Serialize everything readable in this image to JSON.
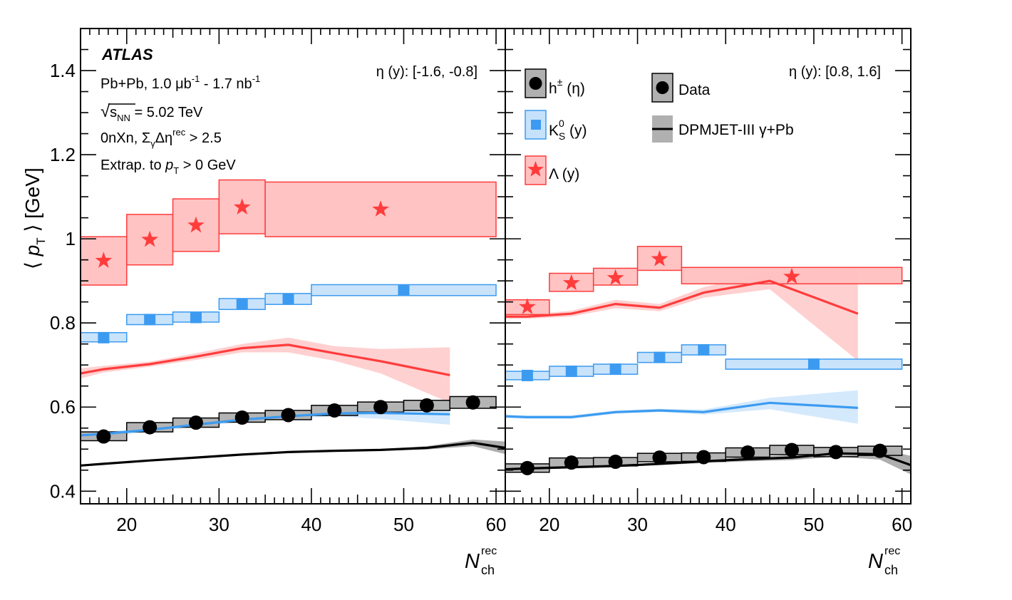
{
  "colors": {
    "lambda": "#ff3c3c",
    "lambda_fill": "#ffc0c0",
    "kaon": "#3c9bf0",
    "kaon_fill": "#c6e2fb",
    "hadron": "#000000",
    "hadron_fill": "#b0b0b0",
    "axis": "#000000"
  },
  "chart_data": {
    "type": "scatter",
    "title": "ATLAS",
    "ylabel": "⟨ p_T ⟩ [GeV]",
    "xlabel": "N_ch^rec",
    "ylim": [
      0.37,
      1.5
    ],
    "xlim": [
      15,
      61
    ],
    "yticks": [
      0.4,
      0.6,
      0.8,
      1.0,
      1.2,
      1.4
    ],
    "ytick_labels": [
      "0.4",
      "0.6",
      "0.8",
      "1",
      "1.2",
      "1.4"
    ],
    "xticks": [
      20,
      30,
      40,
      50,
      60
    ],
    "xtick_labels": [
      "20",
      "30",
      "40",
      "50",
      "60"
    ],
    "annotations": {
      "atlas": "ATLAS",
      "dataset": "Pb+Pb, 1.0 μb⁻¹ - 1.7 nb⁻¹",
      "energy": "√sNN = 5.02 TeV",
      "selection": "0nXn, ΣγΔη^rec > 2.5",
      "extrap": "Extrap. to pT > 0 GeV"
    },
    "legend": {
      "hadron": "h± (η)",
      "kaon": "K0S (y)",
      "lambda": "Λ (y)",
      "data": "Data",
      "model": "DPMJET-III γ+Pb"
    },
    "panels": [
      {
        "name": "backward",
        "range_label": "η (y): [-1.6, -0.8]",
        "lambda": {
          "points": [
            {
              "x": 17.5,
              "y": 0.948
            },
            {
              "x": 22.5,
              "y": 0.998
            },
            {
              "x": 27.5,
              "y": 1.032
            },
            {
              "x": 32.5,
              "y": 1.075
            },
            {
              "x": 47.5,
              "y": 1.07
            }
          ],
          "bins": [
            [
              15,
              20,
              0.89,
              1.005
            ],
            [
              20,
              25,
              0.938,
              1.058
            ],
            [
              25,
              30,
              0.97,
              1.095
            ],
            [
              30,
              35,
              1.012,
              1.14
            ],
            [
              35,
              60,
              1.005,
              1.135
            ]
          ],
          "model": [
            {
              "x": 15,
              "y": 0.68
            },
            {
              "x": 17.5,
              "y": 0.69
            },
            {
              "x": 22.5,
              "y": 0.702
            },
            {
              "x": 27.5,
              "y": 0.72
            },
            {
              "x": 32.5,
              "y": 0.74
            },
            {
              "x": 37.5,
              "y": 0.748
            },
            {
              "x": 42.5,
              "y": 0.728
            },
            {
              "x": 47.5,
              "y": 0.709
            },
            {
              "x": 55,
              "y": 0.676
            }
          ],
          "model_band": [
            [
              15,
              0.668,
              0.692
            ],
            [
              17.5,
              0.682,
              0.698
            ],
            [
              22.5,
              0.696,
              0.708
            ],
            [
              27.5,
              0.712,
              0.728
            ],
            [
              32.5,
              0.73,
              0.75
            ],
            [
              37.5,
              0.73,
              0.765
            ],
            [
              42.5,
              0.71,
              0.745
            ],
            [
              47.5,
              0.68,
              0.738
            ],
            [
              55,
              0.61,
              0.742
            ]
          ]
        },
        "kaon": {
          "points": [
            {
              "x": 17.5,
              "y": 0.765
            },
            {
              "x": 22.5,
              "y": 0.808
            },
            {
              "x": 27.5,
              "y": 0.813
            },
            {
              "x": 32.5,
              "y": 0.845
            },
            {
              "x": 37.5,
              "y": 0.857
            },
            {
              "x": 50,
              "y": 0.878
            }
          ],
          "bins": [
            [
              15,
              20,
              0.755,
              0.777
            ],
            [
              20,
              25,
              0.796,
              0.82
            ],
            [
              25,
              30,
              0.802,
              0.826
            ],
            [
              30,
              35,
              0.832,
              0.858
            ],
            [
              35,
              40,
              0.844,
              0.87
            ],
            [
              40,
              60,
              0.865,
              0.891
            ]
          ],
          "model": [
            {
              "x": 15,
              "y": 0.533
            },
            {
              "x": 17.5,
              "y": 0.536
            },
            {
              "x": 22.5,
              "y": 0.546
            },
            {
              "x": 27.5,
              "y": 0.558
            },
            {
              "x": 32.5,
              "y": 0.57
            },
            {
              "x": 37.5,
              "y": 0.578
            },
            {
              "x": 42.5,
              "y": 0.585
            },
            {
              "x": 47.5,
              "y": 0.586
            },
            {
              "x": 55,
              "y": 0.583
            }
          ],
          "model_band": [
            [
              15,
              0.527,
              0.539
            ],
            [
              17.5,
              0.531,
              0.541
            ],
            [
              22.5,
              0.541,
              0.551
            ],
            [
              27.5,
              0.553,
              0.563
            ],
            [
              32.5,
              0.565,
              0.575
            ],
            [
              37.5,
              0.572,
              0.584
            ],
            [
              42.5,
              0.578,
              0.592
            ],
            [
              47.5,
              0.572,
              0.6
            ],
            [
              55,
              0.558,
              0.608
            ]
          ]
        },
        "hadron": {
          "points": [
            {
              "x": 17.5,
              "y": 0.53
            },
            {
              "x": 22.5,
              "y": 0.552
            },
            {
              "x": 27.5,
              "y": 0.563
            },
            {
              "x": 32.5,
              "y": 0.575
            },
            {
              "x": 37.5,
              "y": 0.581
            },
            {
              "x": 42.5,
              "y": 0.592
            },
            {
              "x": 47.5,
              "y": 0.6
            },
            {
              "x": 52.5,
              "y": 0.604
            },
            {
              "x": 57.5,
              "y": 0.611
            }
          ],
          "bins": [
            [
              15,
              20,
              0.52,
              0.541
            ],
            [
              20,
              25,
              0.541,
              0.563
            ],
            [
              25,
              30,
              0.552,
              0.574
            ],
            [
              30,
              35,
              0.564,
              0.586
            ],
            [
              35,
              40,
              0.57,
              0.592
            ],
            [
              40,
              45,
              0.58,
              0.604
            ],
            [
              45,
              50,
              0.588,
              0.612
            ],
            [
              50,
              55,
              0.592,
              0.616
            ],
            [
              55,
              60,
              0.597,
              0.625
            ]
          ],
          "model": [
            {
              "x": 15,
              "y": 0.461
            },
            {
              "x": 17.5,
              "y": 0.465
            },
            {
              "x": 22.5,
              "y": 0.473
            },
            {
              "x": 27.5,
              "y": 0.48
            },
            {
              "x": 32.5,
              "y": 0.487
            },
            {
              "x": 37.5,
              "y": 0.493
            },
            {
              "x": 42.5,
              "y": 0.496
            },
            {
              "x": 47.5,
              "y": 0.498
            },
            {
              "x": 52.5,
              "y": 0.503
            },
            {
              "x": 57.5,
              "y": 0.515
            },
            {
              "x": 61,
              "y": 0.503
            }
          ],
          "model_band": [
            [
              15,
              0.459,
              0.463
            ],
            [
              17.5,
              0.463,
              0.467
            ],
            [
              22.5,
              0.471,
              0.475
            ],
            [
              27.5,
              0.478,
              0.482
            ],
            [
              32.5,
              0.485,
              0.489
            ],
            [
              37.5,
              0.491,
              0.495
            ],
            [
              42.5,
              0.494,
              0.498
            ],
            [
              47.5,
              0.496,
              0.5
            ],
            [
              52.5,
              0.499,
              0.507
            ],
            [
              57.5,
              0.507,
              0.523
            ],
            [
              61,
              0.488,
              0.518
            ]
          ]
        }
      },
      {
        "name": "forward",
        "range_label": "η (y): [0.8, 1.6]",
        "lambda": {
          "points": [
            {
              "x": 17.5,
              "y": 0.838
            },
            {
              "x": 22.5,
              "y": 0.895
            },
            {
              "x": 27.5,
              "y": 0.907
            },
            {
              "x": 32.5,
              "y": 0.952
            },
            {
              "x": 47.5,
              "y": 0.91
            }
          ],
          "bins": [
            [
              15,
              20,
              0.82,
              0.855
            ],
            [
              20,
              25,
              0.875,
              0.918
            ],
            [
              25,
              30,
              0.89,
              0.93
            ],
            [
              30,
              35,
              0.925,
              0.982
            ],
            [
              35,
              60,
              0.893,
              0.932
            ]
          ],
          "model": [
            {
              "x": 15,
              "y": 0.815
            },
            {
              "x": 17.5,
              "y": 0.815
            },
            {
              "x": 22.5,
              "y": 0.822
            },
            {
              "x": 27.5,
              "y": 0.845
            },
            {
              "x": 32.5,
              "y": 0.836
            },
            {
              "x": 37.5,
              "y": 0.872
            },
            {
              "x": 45,
              "y": 0.9
            },
            {
              "x": 55,
              "y": 0.822
            }
          ],
          "model_band": [
            [
              15,
              0.81,
              0.82
            ],
            [
              17.5,
              0.81,
              0.82
            ],
            [
              22.5,
              0.815,
              0.829
            ],
            [
              27.5,
              0.835,
              0.855
            ],
            [
              32.5,
              0.828,
              0.845
            ],
            [
              37.5,
              0.86,
              0.885
            ],
            [
              45,
              0.88,
              0.92
            ],
            [
              55,
              0.71,
              0.932
            ]
          ]
        },
        "kaon": {
          "points": [
            {
              "x": 17.5,
              "y": 0.675
            },
            {
              "x": 22.5,
              "y": 0.685
            },
            {
              "x": 27.5,
              "y": 0.69
            },
            {
              "x": 32.5,
              "y": 0.718
            },
            {
              "x": 37.5,
              "y": 0.736
            },
            {
              "x": 50,
              "y": 0.702
            }
          ],
          "bins": [
            [
              15,
              20,
              0.665,
              0.685
            ],
            [
              20,
              25,
              0.673,
              0.697
            ],
            [
              25,
              30,
              0.678,
              0.702
            ],
            [
              30,
              35,
              0.706,
              0.73
            ],
            [
              35,
              40,
              0.724,
              0.748
            ],
            [
              40,
              60,
              0.69,
              0.714
            ]
          ],
          "model": [
            {
              "x": 15,
              "y": 0.578
            },
            {
              "x": 17.5,
              "y": 0.576
            },
            {
              "x": 22.5,
              "y": 0.576
            },
            {
              "x": 27.5,
              "y": 0.588
            },
            {
              "x": 32.5,
              "y": 0.592
            },
            {
              "x": 37.5,
              "y": 0.588
            },
            {
              "x": 45,
              "y": 0.61
            },
            {
              "x": 55,
              "y": 0.598
            }
          ],
          "model_band": [
            [
              15,
              0.574,
              0.582
            ],
            [
              17.5,
              0.572,
              0.58
            ],
            [
              22.5,
              0.572,
              0.58
            ],
            [
              27.5,
              0.584,
              0.592
            ],
            [
              32.5,
              0.588,
              0.596
            ],
            [
              37.5,
              0.582,
              0.594
            ],
            [
              45,
              0.595,
              0.622
            ],
            [
              55,
              0.56,
              0.64
            ]
          ]
        },
        "hadron": {
          "points": [
            {
              "x": 17.5,
              "y": 0.455
            },
            {
              "x": 22.5,
              "y": 0.468
            },
            {
              "x": 27.5,
              "y": 0.47
            },
            {
              "x": 32.5,
              "y": 0.48
            },
            {
              "x": 37.5,
              "y": 0.481
            },
            {
              "x": 42.5,
              "y": 0.492
            },
            {
              "x": 47.5,
              "y": 0.498
            },
            {
              "x": 52.5,
              "y": 0.493
            },
            {
              "x": 57.5,
              "y": 0.496
            }
          ],
          "bins": [
            [
              15,
              20,
              0.445,
              0.465
            ],
            [
              20,
              25,
              0.457,
              0.479
            ],
            [
              25,
              30,
              0.46,
              0.48
            ],
            [
              30,
              35,
              0.47,
              0.49
            ],
            [
              35,
              40,
              0.471,
              0.491
            ],
            [
              40,
              45,
              0.481,
              0.503
            ],
            [
              45,
              50,
              0.487,
              0.509
            ],
            [
              50,
              55,
              0.482,
              0.504
            ],
            [
              55,
              60,
              0.485,
              0.507
            ]
          ],
          "model": [
            {
              "x": 15,
              "y": 0.452
            },
            {
              "x": 17.5,
              "y": 0.454
            },
            {
              "x": 22.5,
              "y": 0.457
            },
            {
              "x": 27.5,
              "y": 0.46
            },
            {
              "x": 32.5,
              "y": 0.465
            },
            {
              "x": 37.5,
              "y": 0.471
            },
            {
              "x": 42.5,
              "y": 0.476
            },
            {
              "x": 47.5,
              "y": 0.48
            },
            {
              "x": 52.5,
              "y": 0.49
            },
            {
              "x": 57.5,
              "y": 0.488
            },
            {
              "x": 61,
              "y": 0.462
            }
          ],
          "model_band": [
            [
              15,
              0.449,
              0.455
            ],
            [
              17.5,
              0.451,
              0.457
            ],
            [
              22.5,
              0.454,
              0.46
            ],
            [
              27.5,
              0.457,
              0.463
            ],
            [
              32.5,
              0.462,
              0.468
            ],
            [
              37.5,
              0.467,
              0.475
            ],
            [
              42.5,
              0.471,
              0.481
            ],
            [
              47.5,
              0.474,
              0.486
            ],
            [
              52.5,
              0.482,
              0.498
            ],
            [
              57.5,
              0.475,
              0.501
            ],
            [
              61,
              0.44,
              0.484
            ]
          ]
        }
      }
    ]
  }
}
